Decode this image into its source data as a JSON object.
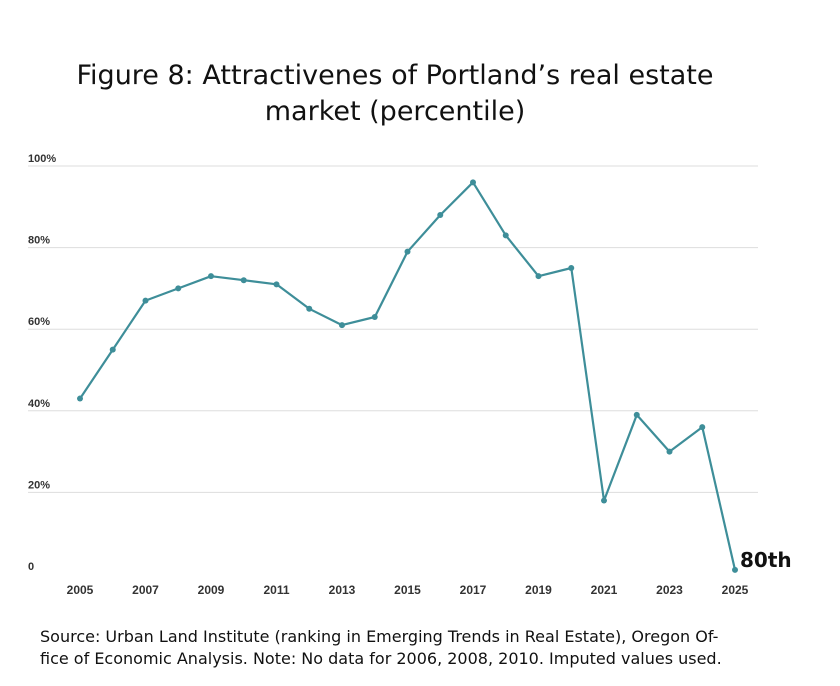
{
  "title_lines": [
    "Figure 8: Attractivenes of Portland’s real estate",
    "market (percentile)"
  ],
  "source_lines": [
    "Source: Urban Land Institute (ranking in Emerging Trends in Real Estate), Oregon Of-",
    "fice of Economic Analysis. Note: No data for 2006, 2008, 2010. Imputed values used."
  ],
  "chart_data": {
    "type": "line",
    "title": "Figure 8: Attractivenes of Portland’s real estate market (percentile)",
    "xlabel": "",
    "ylabel": "",
    "ylim": [
      0,
      100
    ],
    "y_ticks": [
      {
        "value": 0,
        "label": "0"
      },
      {
        "value": 20,
        "label": "20%"
      },
      {
        "value": 40,
        "label": "40%"
      },
      {
        "value": 60,
        "label": "60%"
      },
      {
        "value": 80,
        "label": "80%"
      },
      {
        "value": 100,
        "label": "100%"
      }
    ],
    "x_ticks": [
      2005,
      2007,
      2009,
      2011,
      2013,
      2015,
      2017,
      2019,
      2021,
      2023,
      2025
    ],
    "grid": true,
    "color": "#3e8e99",
    "x": [
      2005,
      2006,
      2007,
      2008,
      2009,
      2010,
      2011,
      2012,
      2013,
      2014,
      2015,
      2016,
      2017,
      2018,
      2019,
      2020,
      2021,
      2022,
      2023,
      2024,
      2025
    ],
    "values": [
      43,
      55,
      67,
      70,
      73,
      72,
      71,
      65,
      61,
      63,
      79,
      88,
      96,
      83,
      73,
      75,
      18,
      39,
      30,
      36,
      1
    ],
    "end_label": "80th"
  }
}
